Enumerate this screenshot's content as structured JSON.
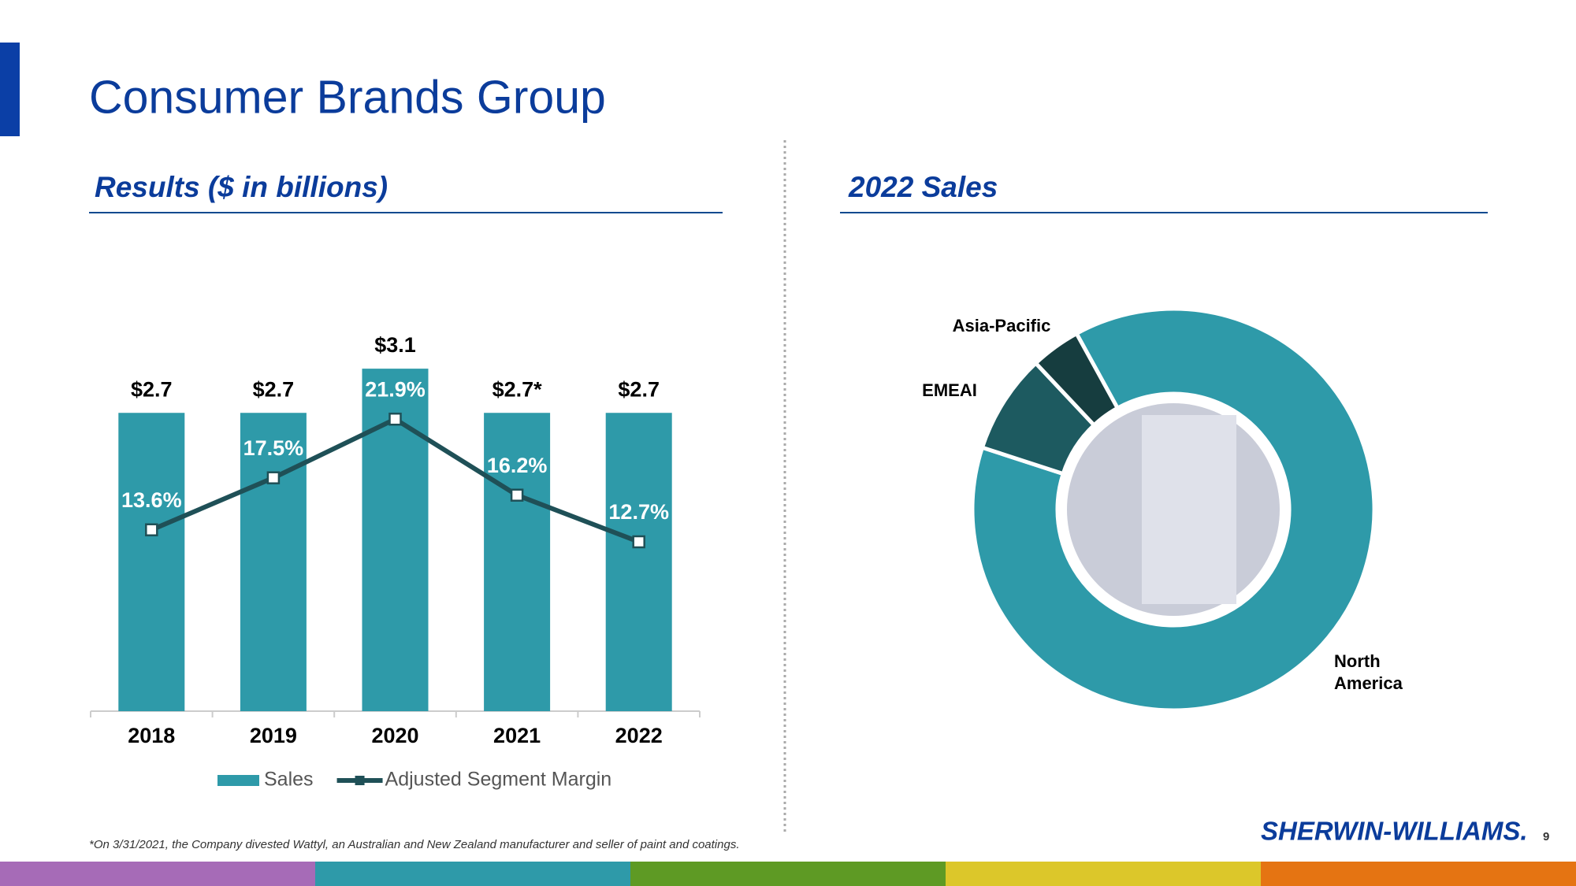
{
  "title": "Consumer Brands Group",
  "footnote": "*On 3/31/2021, the Company divested Wattyl, an Australian and New Zealand manufacturer and seller of paint and coatings.",
  "logo": "SHERWIN-WILLIAMS.",
  "page_number": "9",
  "chart_data": [
    {
      "type": "bar",
      "title": "Results ($ in billions)",
      "categories": [
        "2018",
        "2019",
        "2020",
        "2021",
        "2022"
      ],
      "series": [
        {
          "name": "Sales",
          "type": "bar",
          "color": "#2e9aa9",
          "values": [
            2.7,
            2.7,
            3.1,
            2.7,
            2.7
          ],
          "value_labels": [
            "$2.7",
            "$2.7",
            "$3.1",
            "$2.7*",
            "$2.7"
          ]
        },
        {
          "name": "Adjusted Segment Margin",
          "type": "line",
          "axis": "y2",
          "color": "#1f5057",
          "values": [
            13.6,
            17.5,
            21.9,
            16.2,
            12.7
          ],
          "value_labels": [
            "13.6%",
            "17.5%",
            "21.9%",
            "16.2%",
            "12.7%"
          ]
        }
      ],
      "ylim": [
        0,
        3.5
      ],
      "y2lim": [
        0,
        29
      ],
      "legend": "bottom"
    },
    {
      "type": "donut",
      "title": "2022 Sales",
      "categories": [
        "North America",
        "EMEAI",
        "Asia-Pacific"
      ],
      "values": [
        88,
        8,
        4
      ],
      "colors": [
        "#2e9aa9",
        "#1d5a60",
        "#163d3f"
      ]
    }
  ]
}
